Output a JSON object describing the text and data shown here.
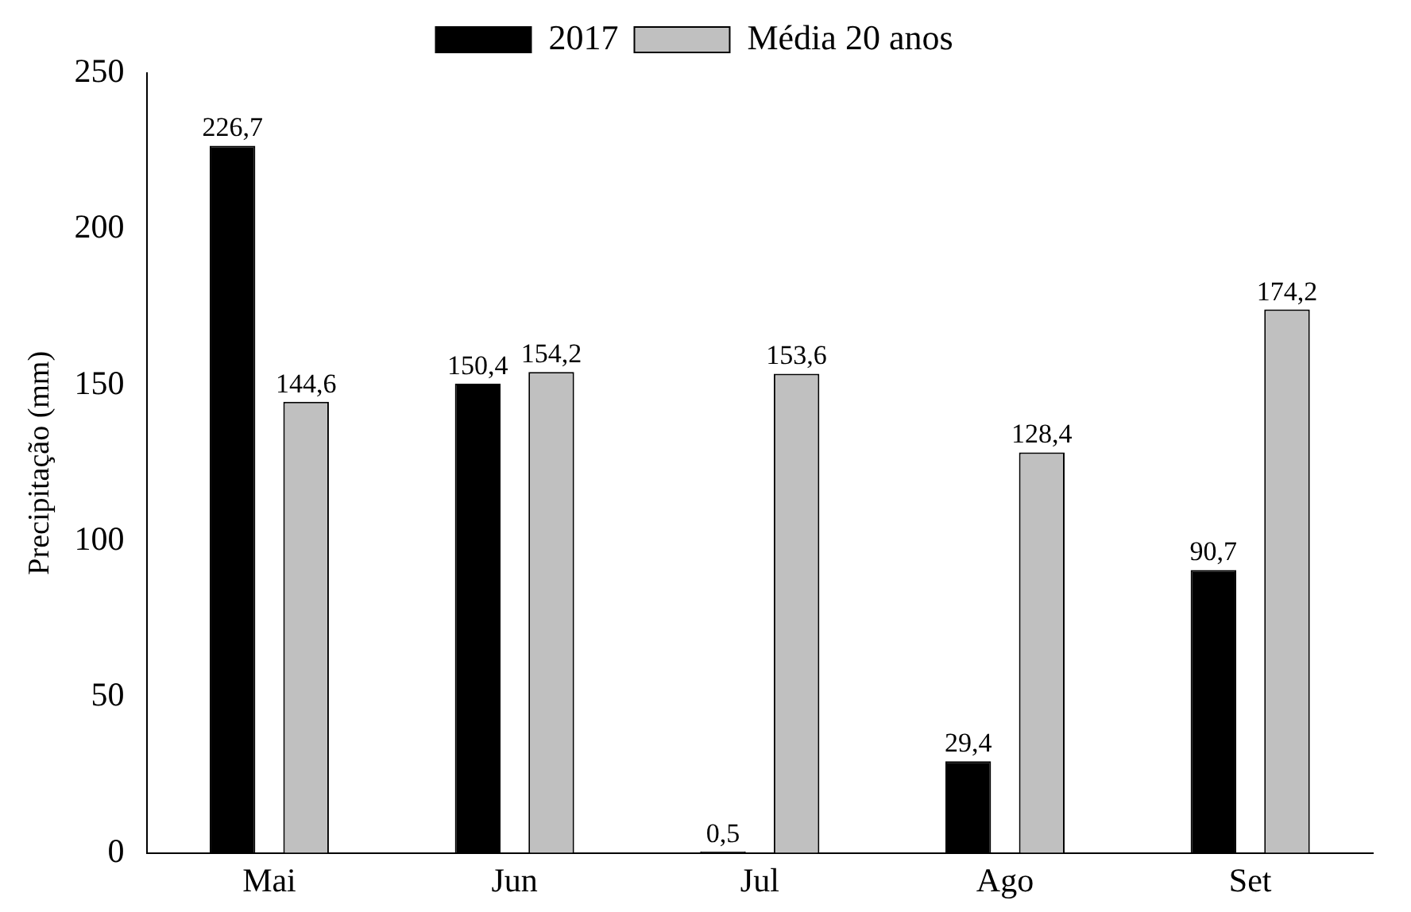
{
  "chart_data": {
    "type": "bar",
    "ylabel": "Precipitação (mm)",
    "categories": [
      "Mai",
      "Jun",
      "Jul",
      "Ago",
      "Set"
    ],
    "series": [
      {
        "name": "2017",
        "color": "#000000",
        "values": [
          226.7,
          150.4,
          0.5,
          29.4,
          90.7
        ],
        "value_labels": [
          "226,7",
          "150,4",
          "0,5",
          "29,4",
          "90,7"
        ]
      },
      {
        "name": "Média 20 anos",
        "color": "#c0c0c0",
        "values": [
          144.6,
          154.2,
          153.6,
          128.4,
          174.2
        ],
        "value_labels": [
          "144,6",
          "154,2",
          "153,6",
          "128,4",
          "174,2"
        ]
      }
    ],
    "ylim": [
      0,
      250
    ],
    "yticks": [
      0,
      50,
      100,
      150,
      200,
      250
    ],
    "grid": false,
    "legend": "top"
  }
}
